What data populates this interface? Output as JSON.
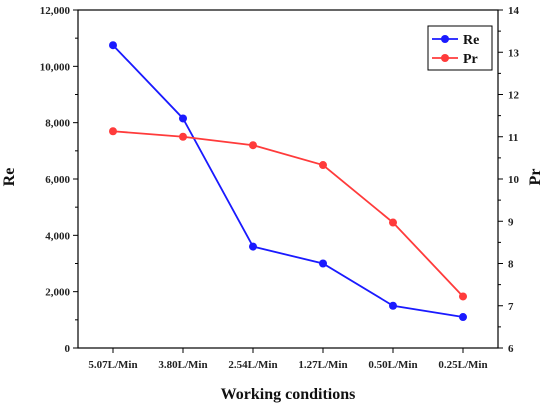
{
  "chart_data": {
    "type": "line",
    "categories": [
      "5.07L/Min",
      "3.80L/Min",
      "2.54L/Min",
      "1.27L/Min",
      "0.50L/Min",
      "0.25L/Min"
    ],
    "xlabel": "Working conditions",
    "ylabel": "Re",
    "y2label": "Pr",
    "ylim": [
      0,
      12000
    ],
    "y2lim": [
      6,
      14
    ],
    "yticks": [
      "0",
      "2,000",
      "4,000",
      "6,000",
      "8,000",
      "10,000",
      "12,000"
    ],
    "y2ticks": [
      "6",
      "7",
      "8",
      "9",
      "10",
      "11",
      "12",
      "13",
      "14"
    ],
    "legend_position": "top-right",
    "series": [
      {
        "name": "Re",
        "axis": "left",
        "color": "#1a1aff",
        "values": [
          10750,
          8150,
          3600,
          3000,
          1500,
          1100
        ]
      },
      {
        "name": "Pr",
        "axis": "right",
        "color": "#ff3b3b",
        "values": [
          11.13,
          11.0,
          10.8,
          10.33,
          8.97,
          7.22
        ]
      }
    ]
  }
}
